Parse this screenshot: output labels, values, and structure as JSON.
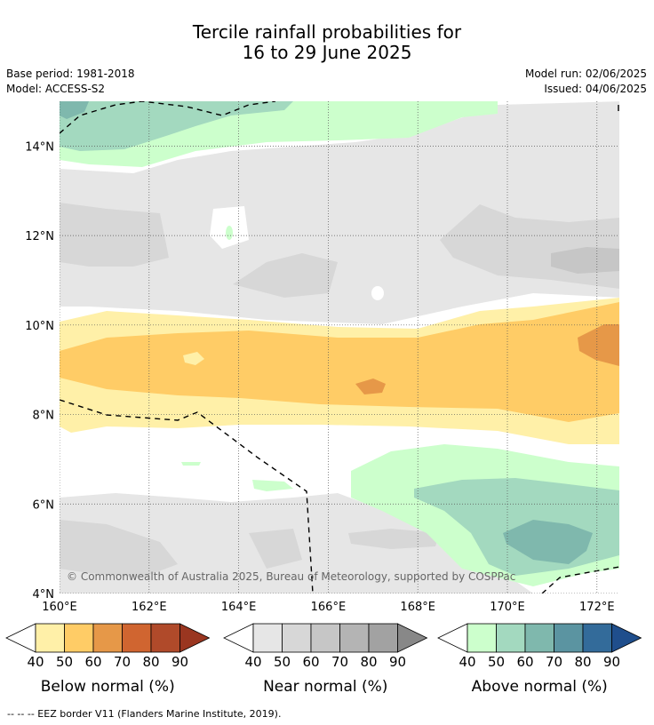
{
  "title": {
    "line1": "Tercile rainfall probabilities for",
    "line2": "16 to 29 June 2025"
  },
  "meta": {
    "base_period": "Base period: 1981-2018",
    "model": "Model: ACCESS-S2",
    "model_run": "Model run: 02/06/2025",
    "issued": "Issued: 04/06/2025"
  },
  "map": {
    "copyright": "© Commonwealth of Australia 2025, Bureau of Meteorology, supported by COSPPac",
    "lon_ticks": [
      "160°E",
      "162°E",
      "164°E",
      "166°E",
      "168°E",
      "170°E",
      "172°E"
    ],
    "lat_ticks": [
      "14°N",
      "12°N",
      "10°N",
      "8°N",
      "6°N",
      "4°N"
    ],
    "lon_range": [
      160,
      172.5
    ],
    "lat_range": [
      4,
      15
    ]
  },
  "colorbars": [
    {
      "title": "Below normal (%)",
      "ticks": [
        "40",
        "50",
        "60",
        "70",
        "80",
        "90"
      ],
      "colors": [
        "#fff0a8",
        "#ffcc66",
        "#e69848",
        "#d06530",
        "#b04a2a",
        "#9a3620"
      ]
    },
    {
      "title": "Near normal (%)",
      "ticks": [
        "40",
        "50",
        "60",
        "70",
        "80",
        "90"
      ],
      "colors": [
        "#e6e6e6",
        "#d7d7d7",
        "#c6c6c6",
        "#b4b4b4",
        "#a2a2a2",
        "#888888"
      ]
    },
    {
      "title": "Above normal (%)",
      "ticks": [
        "40",
        "50",
        "60",
        "70",
        "80",
        "90"
      ],
      "colors": [
        "#ccffcc",
        "#a3d9bf",
        "#7fb8ad",
        "#5b94a1",
        "#336b9a",
        "#1f4e8c"
      ]
    }
  ],
  "footnote": "--  --  -- EEZ border V11 (Flanders Marine Institute, 2019)."
}
